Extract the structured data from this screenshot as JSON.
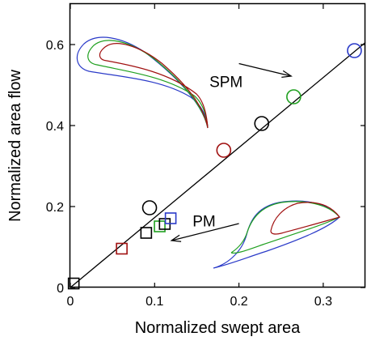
{
  "chart_data": {
    "type": "scatter",
    "xlabel": "Normalized swept area",
    "ylabel": "Normalized area flow",
    "xlim": [
      0,
      0.35
    ],
    "ylim": [
      0,
      0.7
    ],
    "x_ticks": [
      0,
      0.1,
      0.2,
      0.3
    ],
    "x_tick_labels": [
      "0",
      "0.1",
      "0.2",
      "0.3"
    ],
    "y_ticks": [
      0,
      0.2,
      0.4,
      0.6
    ],
    "y_tick_labels": [
      "0",
      "0.2",
      "0.4",
      "0.6"
    ],
    "grid": false,
    "fit_line": {
      "x": [
        0,
        0.35
      ],
      "y": [
        0,
        0.605
      ]
    },
    "series": [
      {
        "marker": "circle",
        "points": [
          {
            "x": 0.094,
            "y": 0.197,
            "color": "#000000"
          },
          {
            "x": 0.182,
            "y": 0.339,
            "color": "#a01010"
          },
          {
            "x": 0.227,
            "y": 0.405,
            "color": "#000000"
          },
          {
            "x": 0.265,
            "y": 0.471,
            "color": "#20a020"
          },
          {
            "x": 0.337,
            "y": 0.585,
            "color": "#2a3ac8"
          }
        ]
      },
      {
        "marker": "square",
        "points": [
          {
            "x": 0.004,
            "y": 0.01,
            "color": "#000000"
          },
          {
            "x": 0.061,
            "y": 0.096,
            "color": "#a01010"
          },
          {
            "x": 0.09,
            "y": 0.135,
            "color": "#000000"
          },
          {
            "x": 0.106,
            "y": 0.151,
            "color": "#20a020"
          },
          {
            "x": 0.112,
            "y": 0.157,
            "color": "#000000"
          },
          {
            "x": 0.119,
            "y": 0.171,
            "color": "#2a3ac8"
          }
        ]
      }
    ],
    "annotations": [
      {
        "text": "SPM",
        "x": 0.165,
        "y": 0.495,
        "arrow_from": [
          0.2,
          0.553
        ],
        "arrow_to": [
          0.262,
          0.522
        ]
      },
      {
        "text": "PM",
        "x": 0.145,
        "y": 0.151,
        "arrow_from": [
          0.2,
          0.158
        ],
        "arrow_to": [
          0.12,
          0.116
        ]
      }
    ]
  }
}
